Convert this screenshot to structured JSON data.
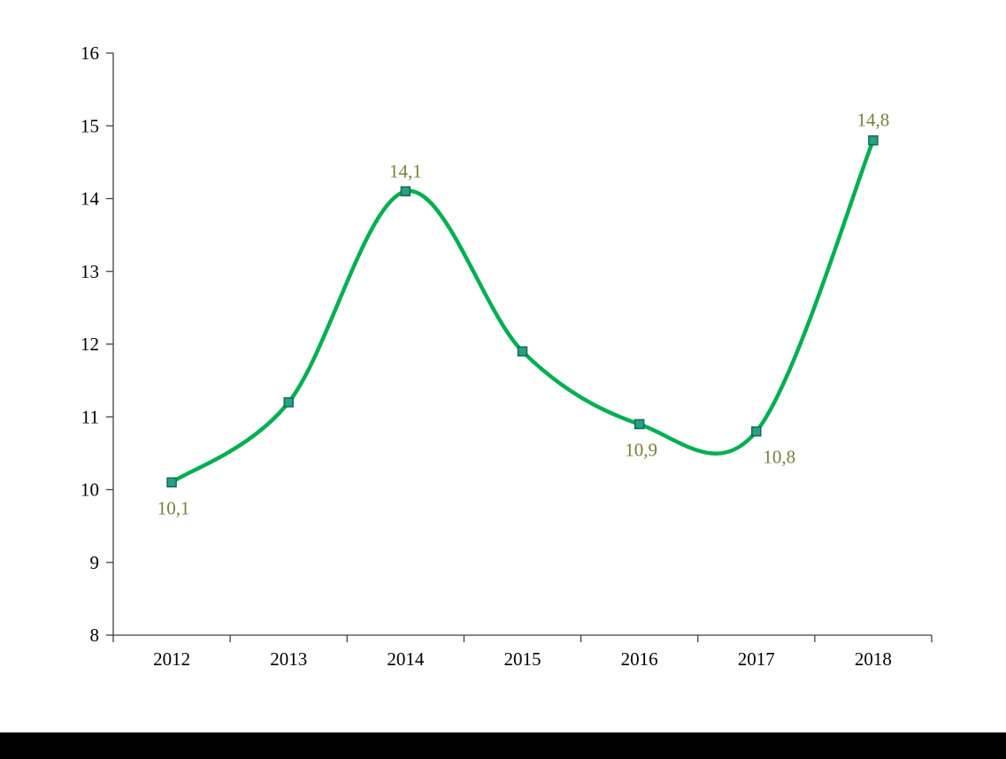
{
  "page": {
    "background": "#ffffff",
    "bottom_bar_color": "#000000"
  },
  "chart_data": {
    "type": "line",
    "title": "",
    "xlabel": "",
    "ylabel": "",
    "categories": [
      "2012",
      "2013",
      "2014",
      "2015",
      "2016",
      "2017",
      "2018"
    ],
    "series": [
      {
        "name": "series-1",
        "values": [
          10.1,
          11.2,
          14.1,
          11.9,
          10.9,
          10.8,
          14.8
        ],
        "smooth": true,
        "line_color": "#00B050",
        "line_width": 4.5,
        "marker_shape": "square",
        "marker_fill": "#27A083",
        "marker_stroke": "#17695A"
      }
    ],
    "data_labels": [
      {
        "index": 0,
        "text": "10,1",
        "position": "below"
      },
      {
        "index": 2,
        "text": "14,1",
        "position": "above"
      },
      {
        "index": 4,
        "text": "10,9",
        "position": "below"
      },
      {
        "index": 5,
        "text": "10,8",
        "position": "below-right"
      },
      {
        "index": 6,
        "text": "14,8",
        "position": "above"
      }
    ],
    "data_label_color": "#76803C",
    "ylim": [
      8,
      16
    ],
    "ytick_step": 1,
    "y_tick_labels": [
      "8",
      "9",
      "10",
      "11",
      "12",
      "13",
      "14",
      "15",
      "16"
    ],
    "grid": false,
    "legend": "none",
    "axis_color": "#404040",
    "tick_label_color": "#000000"
  }
}
